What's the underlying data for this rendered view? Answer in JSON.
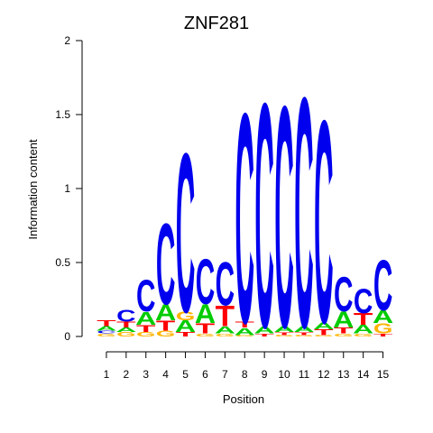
{
  "chart_data": {
    "type": "sequence-logo",
    "title": "ZNF281",
    "xlabel": "Position",
    "ylabel": "Information content",
    "ylim": [
      0,
      2
    ],
    "yticks": [
      "0",
      "0.5",
      "1",
      "1.5",
      "2"
    ],
    "positions": [
      "1",
      "2",
      "3",
      "4",
      "5",
      "6",
      "7",
      "8",
      "9",
      "10",
      "11",
      "12",
      "13",
      "14",
      "15"
    ],
    "colors": {
      "A": "#00cc00",
      "C": "#0000ee",
      "G": "#ffb300",
      "T": "#ff0000"
    },
    "columns": [
      [
        {
          "base": "G",
          "h": 0.02
        },
        {
          "base": "C",
          "h": 0.02
        },
        {
          "base": "A",
          "h": 0.03
        },
        {
          "base": "T",
          "h": 0.04
        }
      ],
      [
        {
          "base": "G",
          "h": 0.03
        },
        {
          "base": "A",
          "h": 0.03
        },
        {
          "base": "T",
          "h": 0.04
        },
        {
          "base": "C",
          "h": 0.08
        }
      ],
      [
        {
          "base": "G",
          "h": 0.03
        },
        {
          "base": "T",
          "h": 0.05
        },
        {
          "base": "A",
          "h": 0.09
        },
        {
          "base": "C",
          "h": 0.22
        }
      ],
      [
        {
          "base": "G",
          "h": 0.04
        },
        {
          "base": "T",
          "h": 0.07
        },
        {
          "base": "A",
          "h": 0.11
        },
        {
          "base": "C",
          "h": 0.56
        }
      ],
      [
        {
          "base": "T",
          "h": 0.03
        },
        {
          "base": "A",
          "h": 0.08
        },
        {
          "base": "G",
          "h": 0.06
        },
        {
          "base": "C",
          "h": 1.1
        }
      ],
      [
        {
          "base": "G",
          "h": 0.02
        },
        {
          "base": "T",
          "h": 0.07
        },
        {
          "base": "A",
          "h": 0.13
        },
        {
          "base": "C",
          "h": 0.31
        }
      ],
      [
        {
          "base": "G",
          "h": 0.02
        },
        {
          "base": "A",
          "h": 0.05
        },
        {
          "base": "T",
          "h": 0.14
        },
        {
          "base": "C",
          "h": 0.3
        }
      ],
      [
        {
          "base": "G",
          "h": 0.01
        },
        {
          "base": "A",
          "h": 0.05
        },
        {
          "base": "T",
          "h": 0.04
        },
        {
          "base": "C",
          "h": 1.45
        }
      ],
      [
        {
          "base": "T",
          "h": 0.02
        },
        {
          "base": "A",
          "h": 0.05
        },
        {
          "base": "C",
          "h": 1.55
        }
      ],
      [
        {
          "base": "G",
          "h": 0.01
        },
        {
          "base": "T",
          "h": 0.02
        },
        {
          "base": "A",
          "h": 0.04
        },
        {
          "base": "C",
          "h": 1.53
        }
      ],
      [
        {
          "base": "G",
          "h": 0.01
        },
        {
          "base": "T",
          "h": 0.02
        },
        {
          "base": "A",
          "h": 0.04
        },
        {
          "base": "C",
          "h": 1.59
        }
      ],
      [
        {
          "base": "G",
          "h": 0.01
        },
        {
          "base": "T",
          "h": 0.04
        },
        {
          "base": "A",
          "h": 0.05
        },
        {
          "base": "C",
          "h": 1.4
        }
      ],
      [
        {
          "base": "G",
          "h": 0.02
        },
        {
          "base": "T",
          "h": 0.04
        },
        {
          "base": "A",
          "h": 0.11
        },
        {
          "base": "C",
          "h": 0.24
        }
      ],
      [
        {
          "base": "G",
          "h": 0.02
        },
        {
          "base": "A",
          "h": 0.06
        },
        {
          "base": "T",
          "h": 0.08
        },
        {
          "base": "C",
          "h": 0.17
        }
      ],
      [
        {
          "base": "T",
          "h": 0.02
        },
        {
          "base": "G",
          "h": 0.07
        },
        {
          "base": "A",
          "h": 0.09
        },
        {
          "base": "C",
          "h": 0.35
        }
      ]
    ]
  }
}
